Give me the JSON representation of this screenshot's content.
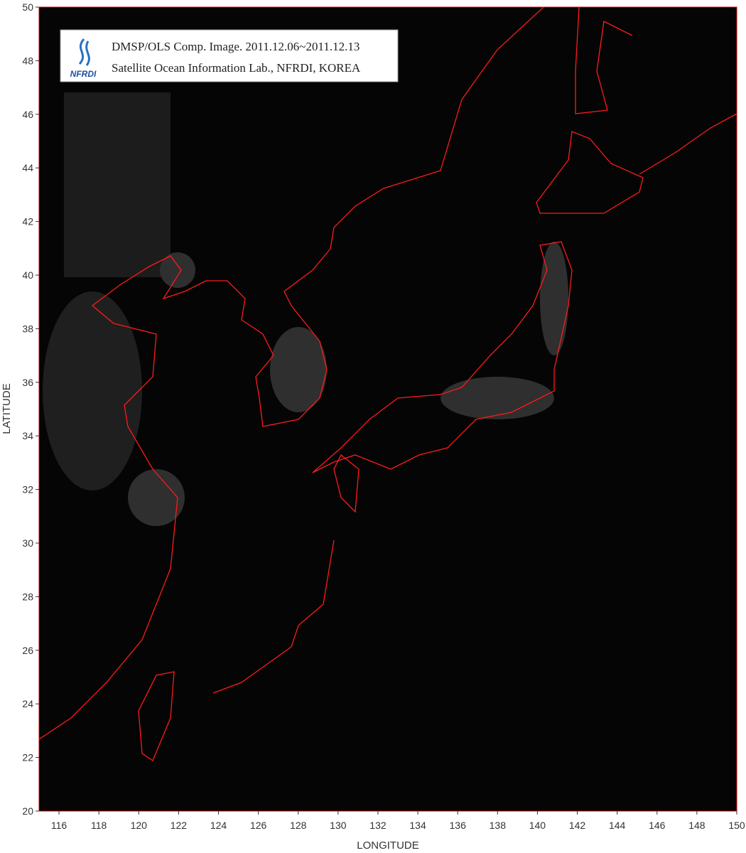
{
  "map": {
    "caption": {
      "line1": "DMSP/OLS Comp. Image. 2011.12.06~2011.12.13",
      "line2": "Satellite Ocean Information Lab., NFRDI, KOREA",
      "logo": "NFRDI"
    },
    "x_label": "LONGITUDE",
    "y_label": "LATITUDE",
    "xlim": [
      115,
      150
    ],
    "ylim": [
      20,
      50
    ],
    "xticks": [
      116,
      118,
      120,
      122,
      124,
      126,
      128,
      130,
      132,
      134,
      136,
      138,
      140,
      142,
      144,
      146,
      148,
      150
    ],
    "yticks": [
      20,
      22,
      24,
      26,
      28,
      30,
      32,
      34,
      36,
      38,
      40,
      42,
      44,
      46,
      48,
      50
    ]
  }
}
